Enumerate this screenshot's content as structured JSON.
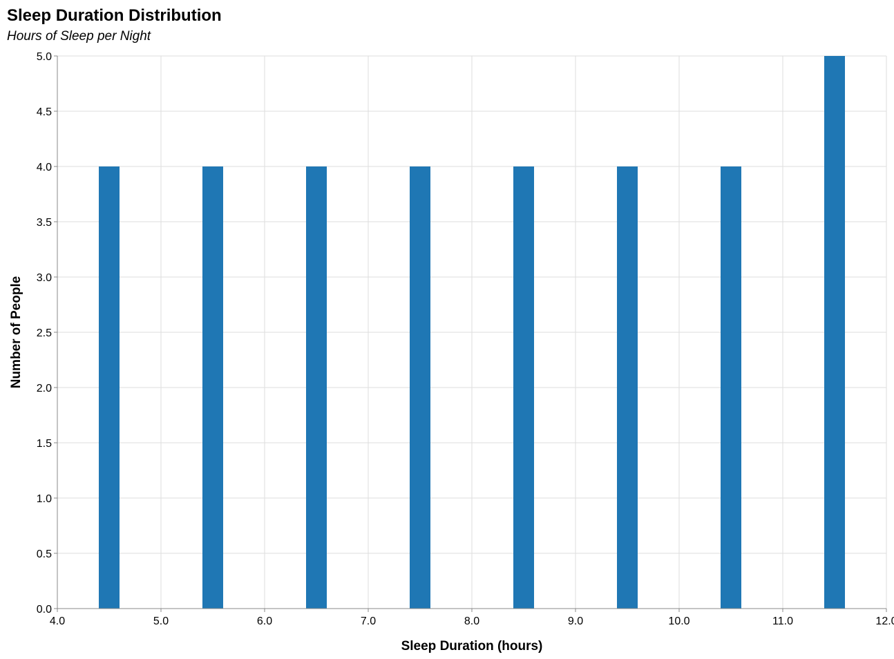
{
  "chart_data": {
    "type": "bar",
    "title": "Sleep Duration Distribution",
    "subtitle": "Hours of Sleep per Night",
    "xlabel": "Sleep Duration (hours)",
    "ylabel": "Number of People",
    "xlim": [
      4.0,
      12.0
    ],
    "ylim": [
      0,
      5.0
    ],
    "x_ticks": [
      "4.0",
      "5.0",
      "6.0",
      "7.0",
      "8.0",
      "9.0",
      "10.0",
      "11.0",
      "12.0"
    ],
    "y_ticks": [
      "0.0",
      "0.5",
      "1.0",
      "1.5",
      "2.0",
      "2.5",
      "3.0",
      "3.5",
      "4.0",
      "4.5",
      "5.0"
    ],
    "bar_width": 0.2,
    "x": [
      4.5,
      5.5,
      6.5,
      7.5,
      8.5,
      9.5,
      10.5,
      11.5
    ],
    "values": [
      4,
      4,
      4,
      4,
      4,
      4,
      4,
      5
    ],
    "grid": true,
    "bar_color": "#1f77b4"
  }
}
